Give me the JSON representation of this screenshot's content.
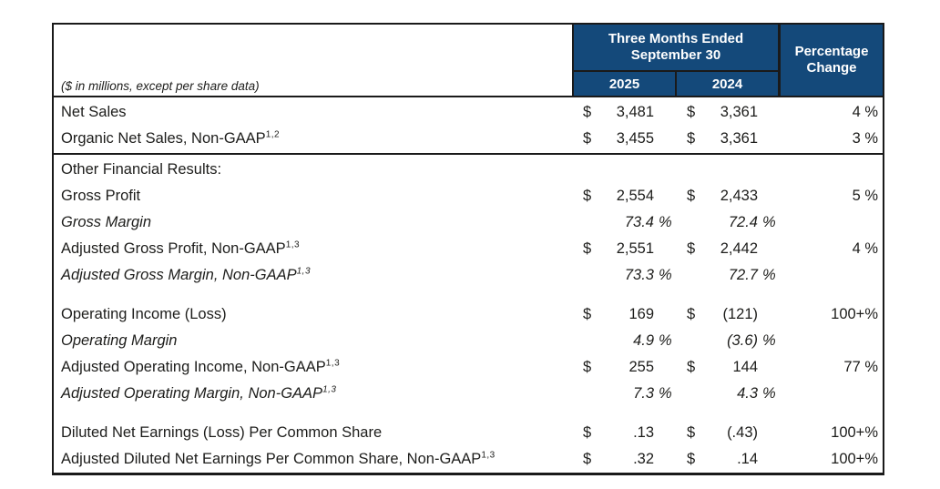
{
  "header": {
    "note": "($ in millions, except per share data)",
    "period_title_line1": "Three Months Ended",
    "period_title_line2": "September 30",
    "years": {
      "col1": "2025",
      "col2": "2024"
    },
    "pct_line1": "Percentage",
    "pct_line2": "Change"
  },
  "colors": {
    "header_bg": "#14497a",
    "header_text": "#ffffff",
    "border": "#1a1a1a",
    "body_text": "#1d1d1b"
  },
  "chart_data": {
    "type": "table",
    "title": "Three Months Ended September 30",
    "columns": [
      "2025",
      "2024",
      "Percentage Change"
    ],
    "rows": [
      {
        "label": "Net Sales",
        "sup": "",
        "italic": false,
        "gap_before": false,
        "separator_before": false,
        "d1": "$",
        "v1": "3,481",
        "s1": "",
        "d2": "$",
        "v2": "3,361",
        "s2": "",
        "pct": "4 %"
      },
      {
        "label": "Organic Net Sales, Non-GAAP",
        "sup": "1,2",
        "italic": false,
        "gap_before": false,
        "separator_before": false,
        "d1": "$",
        "v1": "3,455",
        "s1": "",
        "d2": "$",
        "v2": "3,361",
        "s2": "",
        "pct": "3 %"
      },
      {
        "label": "Other Financial Results:",
        "sup": "",
        "italic": false,
        "gap_before": false,
        "separator_before": true,
        "d1": "",
        "v1": "",
        "s1": "",
        "d2": "",
        "v2": "",
        "s2": "",
        "pct": ""
      },
      {
        "label": "Gross Profit",
        "sup": "",
        "italic": false,
        "gap_before": false,
        "separator_before": false,
        "d1": "$",
        "v1": "2,554",
        "s1": "",
        "d2": "$",
        "v2": "2,433",
        "s2": "",
        "pct": "5 %"
      },
      {
        "label": "Gross Margin",
        "sup": "",
        "italic": true,
        "gap_before": false,
        "separator_before": false,
        "d1": "",
        "v1": "73.4",
        "s1": "%",
        "d2": "",
        "v2": "72.4",
        "s2": "%",
        "pct": ""
      },
      {
        "label": "Adjusted Gross Profit, Non-GAAP",
        "sup": "1,3",
        "italic": false,
        "gap_before": false,
        "separator_before": false,
        "d1": "$",
        "v1": "2,551",
        "s1": "",
        "d2": "$",
        "v2": "2,442",
        "s2": "",
        "pct": "4 %"
      },
      {
        "label": "Adjusted Gross Margin, Non-GAAP",
        "sup": "1,3",
        "italic": true,
        "gap_before": false,
        "separator_before": false,
        "d1": "",
        "v1": "73.3",
        "s1": "%",
        "d2": "",
        "v2": "72.7",
        "s2": "%",
        "pct": ""
      },
      {
        "label": "Operating Income (Loss)",
        "sup": "",
        "italic": false,
        "gap_before": true,
        "separator_before": false,
        "d1": "$",
        "v1": "169",
        "s1": "",
        "d2": "$",
        "v2": "(121)",
        "s2": "",
        "pct": "100+%"
      },
      {
        "label": "Operating Margin",
        "sup": "",
        "italic": true,
        "gap_before": false,
        "separator_before": false,
        "d1": "",
        "v1": "4.9",
        "s1": "%",
        "d2": "",
        "v2": "(3.6)",
        "s2": "%",
        "pct": ""
      },
      {
        "label": "Adjusted Operating Income, Non-GAAP",
        "sup": "1,3",
        "italic": false,
        "gap_before": false,
        "separator_before": false,
        "d1": "$",
        "v1": "255",
        "s1": "",
        "d2": "$",
        "v2": "144",
        "s2": "",
        "pct": "77 %"
      },
      {
        "label": "Adjusted Operating Margin, Non-GAAP",
        "sup": "1,3",
        "italic": true,
        "gap_before": false,
        "separator_before": false,
        "d1": "",
        "v1": "7.3",
        "s1": "%",
        "d2": "",
        "v2": "4.3",
        "s2": "%",
        "pct": ""
      },
      {
        "label": "Diluted Net Earnings (Loss) Per Common Share",
        "sup": "",
        "italic": false,
        "gap_before": true,
        "separator_before": false,
        "d1": "$",
        "v1": ".13",
        "s1": "",
        "d2": "$",
        "v2": "(.43)",
        "s2": "",
        "pct": "100+%"
      },
      {
        "label": "Adjusted Diluted Net Earnings Per Common Share, Non-GAAP",
        "sup": "1,3",
        "italic": false,
        "gap_before": false,
        "separator_before": false,
        "d1": "$",
        "v1": ".32",
        "s1": "",
        "d2": "$",
        "v2": ".14",
        "s2": "",
        "pct": "100+%"
      }
    ]
  }
}
